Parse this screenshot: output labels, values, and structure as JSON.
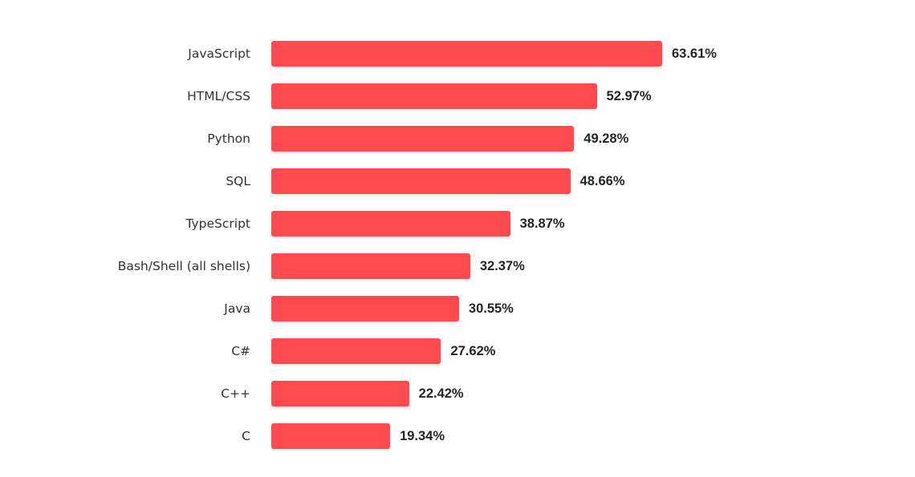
{
  "chart_data": {
    "type": "bar",
    "orientation": "horizontal",
    "title": "",
    "xlabel": "",
    "ylabel": "",
    "categories": [
      "JavaScript",
      "HTML/CSS",
      "Python",
      "SQL",
      "TypeScript",
      "Bash/Shell (all shells)",
      "Java",
      "C#",
      "C++",
      "C"
    ],
    "values": [
      63.61,
      52.97,
      49.28,
      48.66,
      38.87,
      32.37,
      30.55,
      27.62,
      22.42,
      19.34
    ],
    "value_labels": [
      "63.61%",
      "52.97%",
      "49.28%",
      "48.66%",
      "38.87%",
      "32.37%",
      "30.55%",
      "27.62%",
      "22.42%",
      "19.34%"
    ],
    "unit": "%",
    "xlim": [
      0,
      100
    ],
    "grid": false,
    "legend": null,
    "bar_color": "#ff4a50"
  }
}
